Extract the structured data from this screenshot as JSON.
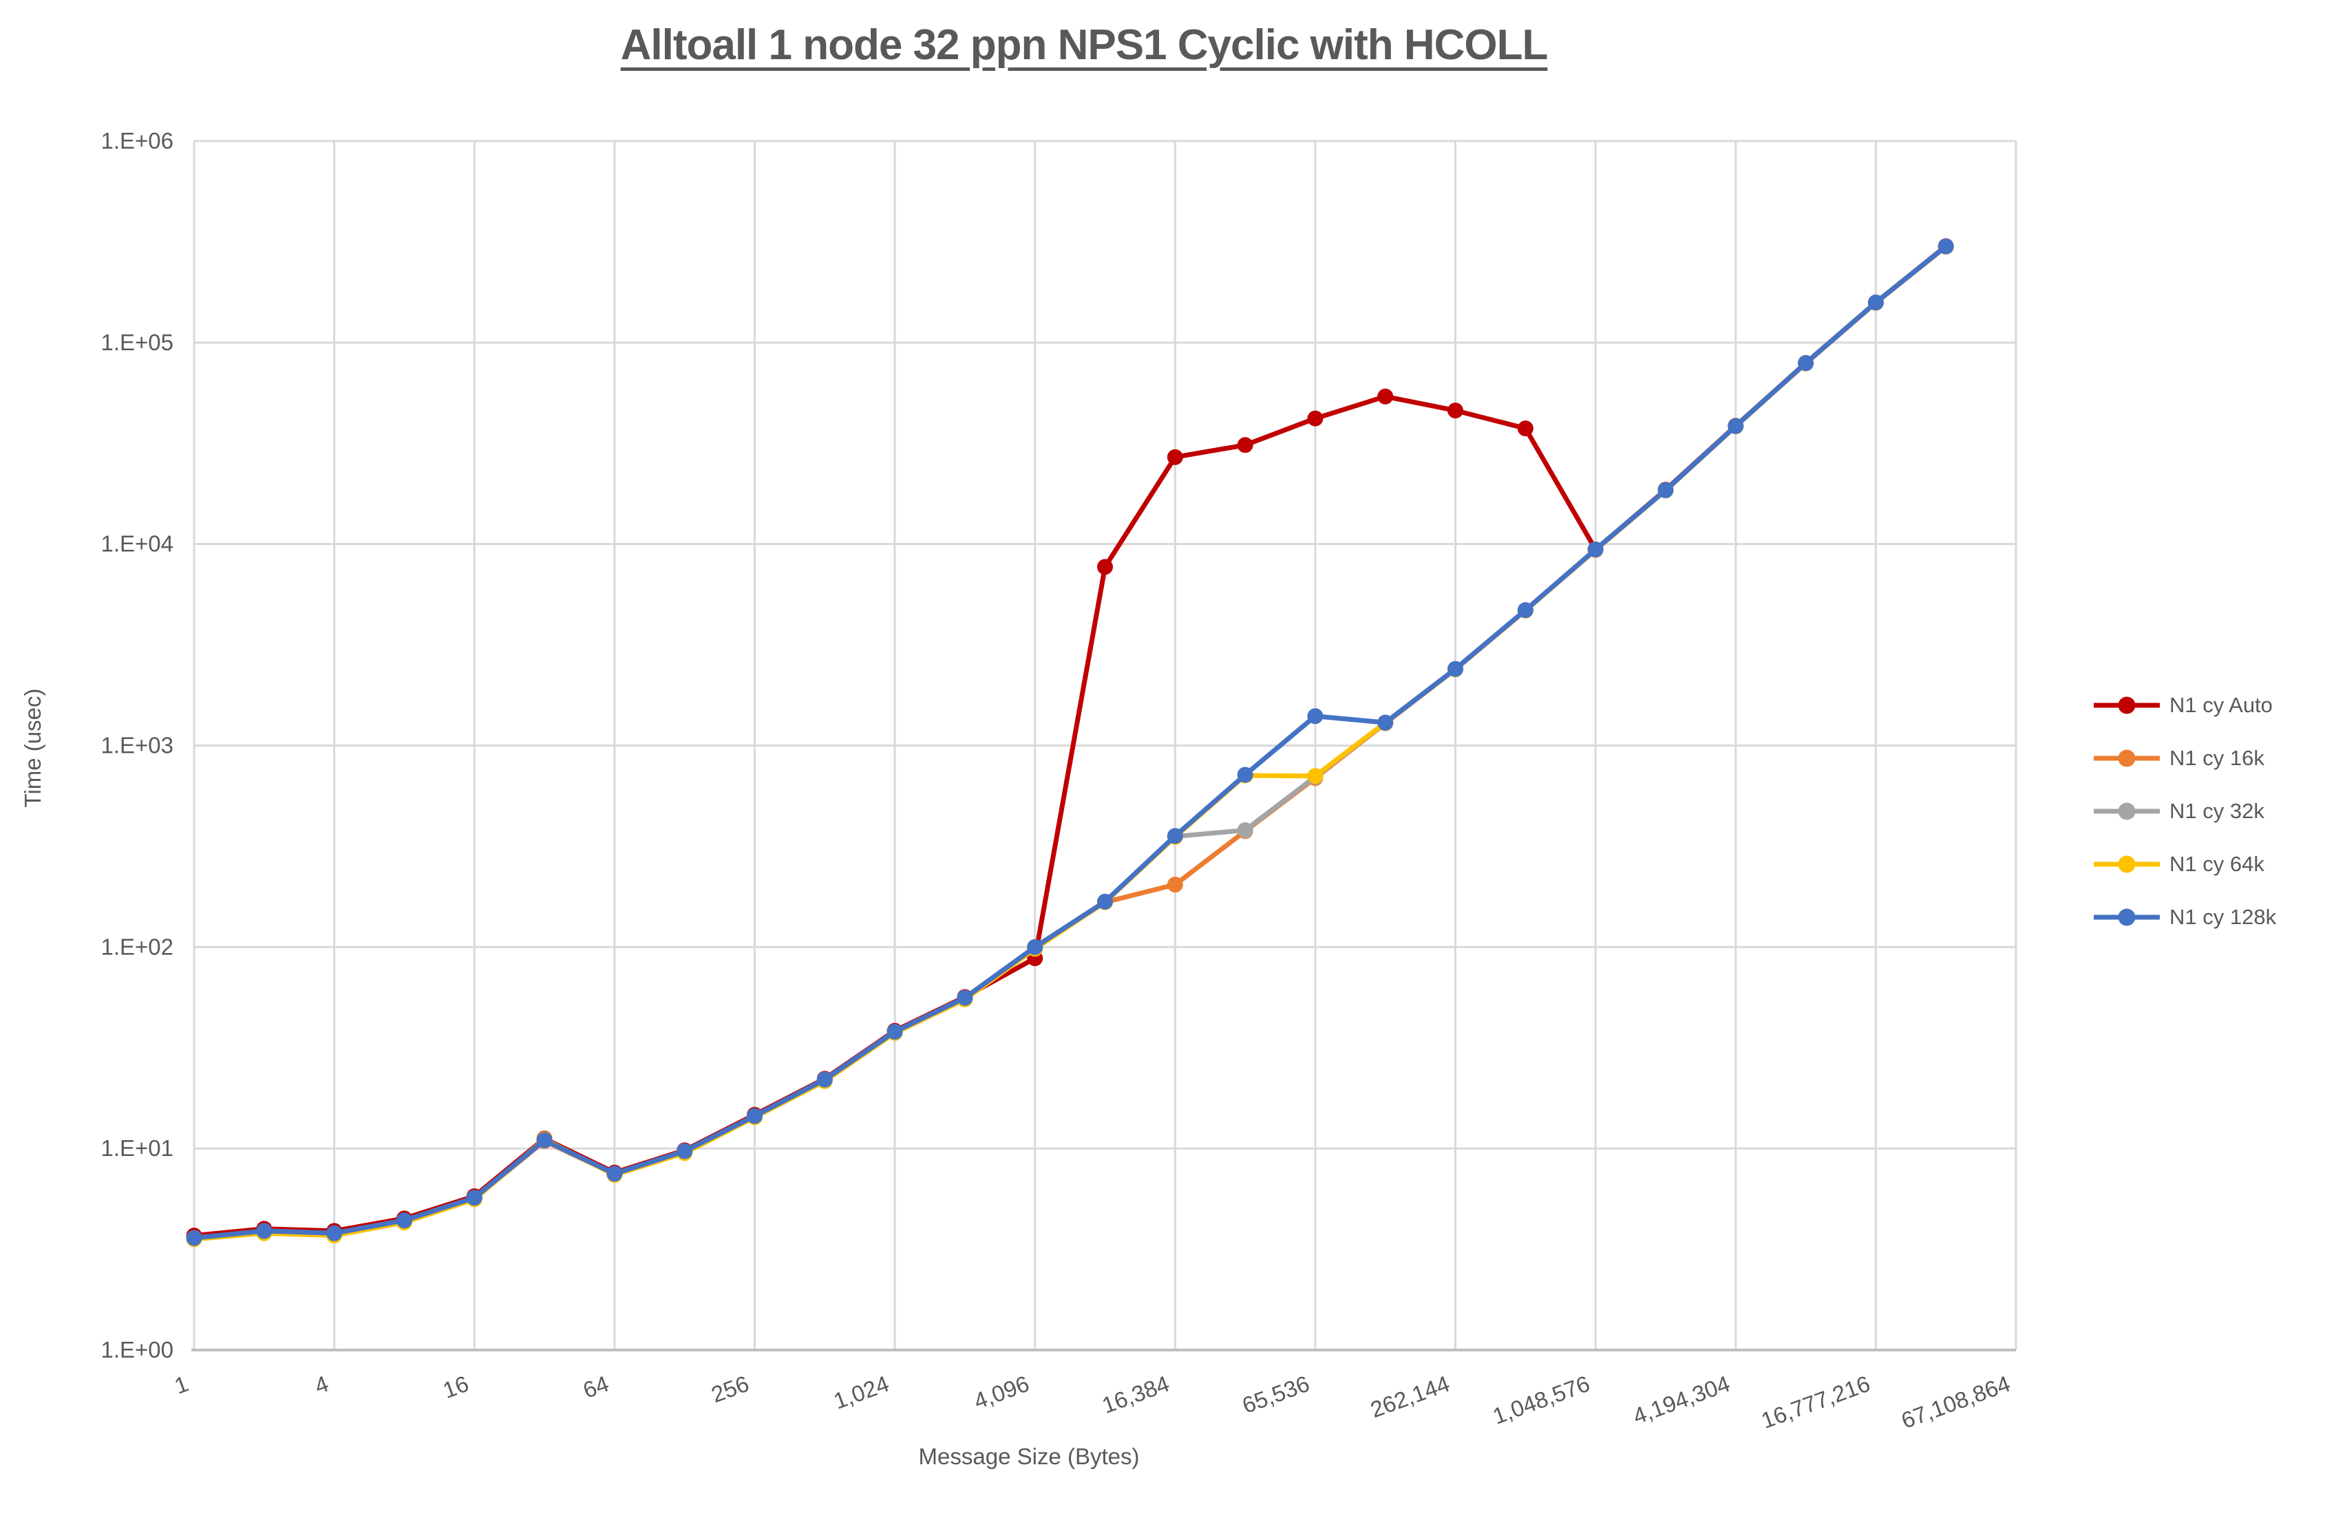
{
  "page": {
    "background": "#FFFFFF"
  },
  "chart_data": {
    "type": "line",
    "title": "Alltoall 1 node 32 ppn NPS1 Cyclic with HCOLL",
    "xlabel": "Message Size (Bytes)",
    "ylabel": "Time (usec)",
    "x_scale": "log2 category axis, one category per power of 2",
    "y_scale": "log10",
    "ylim": [
      1,
      1000000
    ],
    "grid": true,
    "legend_position": "right",
    "y_tick_labels": [
      "1.E+00",
      "1.E+01",
      "1.E+02",
      "1.E+03",
      "1.E+04",
      "1.E+05",
      "1.E+06"
    ],
    "x_tick_values": [
      1,
      4,
      16,
      64,
      256,
      1024,
      4096,
      16384,
      65536,
      262144,
      1048576,
      4194304,
      16777216,
      67108864
    ],
    "x_tick_labels": [
      "1",
      "4",
      "16",
      "64",
      "256",
      "1,024",
      "4,096",
      "16,384",
      "65,536",
      "262,144",
      "1,048,576",
      "4,194,304",
      "16,777,216",
      "67,108,864"
    ],
    "x_axis_last_category": 67108864,
    "x": [
      1,
      2,
      4,
      8,
      16,
      32,
      64,
      128,
      256,
      512,
      1024,
      2048,
      4096,
      8192,
      16384,
      32768,
      65536,
      131072,
      262144,
      524288,
      1048576,
      2097152,
      4194304,
      8388608,
      16777216,
      33554432
    ],
    "colors": {
      "text": "#595959",
      "gridline": "#D9D9D9",
      "axis_line": "#BFBFBF",
      "background": "#FFFFFF"
    },
    "series": [
      {
        "name": "N1 cy Auto",
        "color": "#C00000",
        "values": [
          3.7,
          4.0,
          3.9,
          4.5,
          5.8,
          11.2,
          7.6,
          9.8,
          14.7,
          22.2,
          38.4,
          56.5,
          88,
          7700,
          27000,
          31000,
          42000,
          54000,
          46000,
          37500,
          9400,
          18600,
          38600,
          79200,
          158000,
          301000
        ]
      },
      {
        "name": "N1 cy 16k",
        "color": "#ED7D31",
        "values": [
          3.6,
          3.85,
          3.75,
          4.35,
          5.65,
          10.9,
          7.45,
          9.6,
          14.4,
          21.8,
          37.7,
          55.5,
          99,
          167,
          204,
          376,
          690,
          1290,
          2390,
          4680,
          9350,
          18450,
          38400,
          78800,
          157500,
          299000
        ]
      },
      {
        "name": "N1 cy 32k",
        "color": "#A5A5A5",
        "values": [
          3.6,
          3.9,
          3.8,
          4.4,
          5.7,
          11.0,
          7.5,
          9.7,
          14.5,
          22.0,
          38.0,
          56.0,
          100,
          168,
          354,
          380,
          700,
          1295,
          2400,
          4700,
          9400,
          18500,
          38500,
          79000,
          158000,
          300000
        ]
      },
      {
        "name": "N1 cy 64k",
        "color": "#FFC000",
        "values": [
          3.55,
          3.8,
          3.7,
          4.3,
          5.6,
          11.1,
          7.4,
          9.5,
          14.3,
          21.6,
          37.5,
          55.0,
          98,
          167,
          352,
          710,
          706,
          1300,
          2395,
          4690,
          9380,
          18480,
          38450,
          78900,
          157800,
          299500
        ]
      },
      {
        "name": "N1 cy 128k",
        "color": "#4472C4",
        "values": [
          3.6,
          3.9,
          3.8,
          4.4,
          5.7,
          11.0,
          7.5,
          9.7,
          14.5,
          22.0,
          38.0,
          56.0,
          100,
          168,
          356,
          716,
          1400,
          1300,
          2400,
          4700,
          9400,
          18500,
          38500,
          79000,
          158000,
          300000
        ]
      }
    ]
  }
}
